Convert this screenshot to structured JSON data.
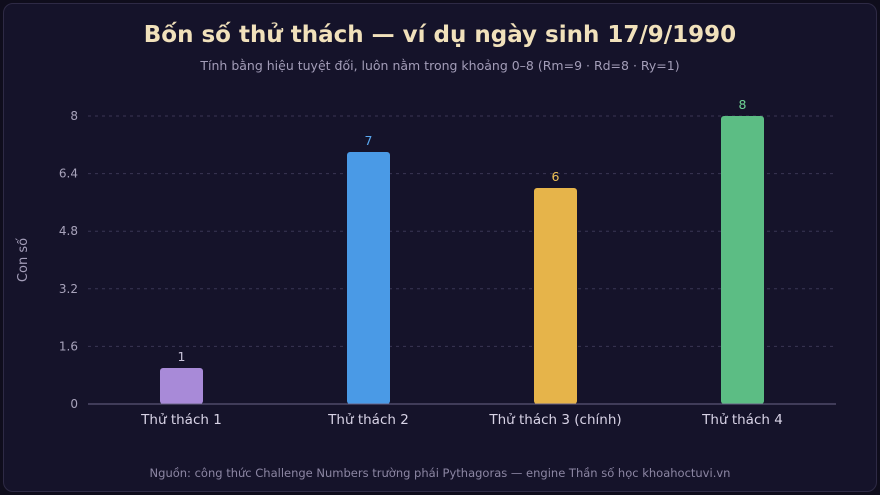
{
  "title": "Bốn số thử thách — ví dụ ngày sinh 17/9/1990",
  "subtitle": "Tính bằng hiệu tuyệt đối, luôn nằm trong khoảng 0–8 (Rm=9 · Rd=8 · Ry=1)",
  "source": "Nguồn: công thức Challenge Numbers trường phái Pythagoras — engine Thần số học khoahoctuvi.vn",
  "colors": {
    "background": "#15132a",
    "grid": "#3a3654",
    "axis": "#6b6588"
  },
  "chart_data": {
    "type": "bar",
    "title": "Bốn số thử thách — ví dụ ngày sinh 17/9/1990",
    "subtitle": "Tính bằng hiệu tuyệt đối, luôn nằm trong khoảng 0–8 (Rm=9 · Rd=8 · Ry=1)",
    "xlabel": "",
    "ylabel": "Con số",
    "categories": [
      "Thử thách 1",
      "Thử thách 2",
      "Thử thách 3 (chính)",
      "Thử thách 4"
    ],
    "values": [
      1,
      7,
      6,
      8
    ],
    "value_labels": [
      "1",
      "7",
      "6",
      "8"
    ],
    "bar_colors": [
      "#a88ad8",
      "#4a9ae6",
      "#e6b44a",
      "#5cbd84"
    ],
    "label_colors": [
      "#c9c3d9",
      "#5aa8f0",
      "#efc256",
      "#6fd495"
    ],
    "ylim": [
      0,
      8
    ],
    "yticks": [
      "0",
      "1.6",
      "3.2",
      "4.8",
      "6.4",
      "8"
    ],
    "ytick_values": [
      0,
      1.6,
      3.2,
      4.8,
      6.4,
      8
    ],
    "grid": true,
    "grid_style": "dashed",
    "legend": "none"
  }
}
